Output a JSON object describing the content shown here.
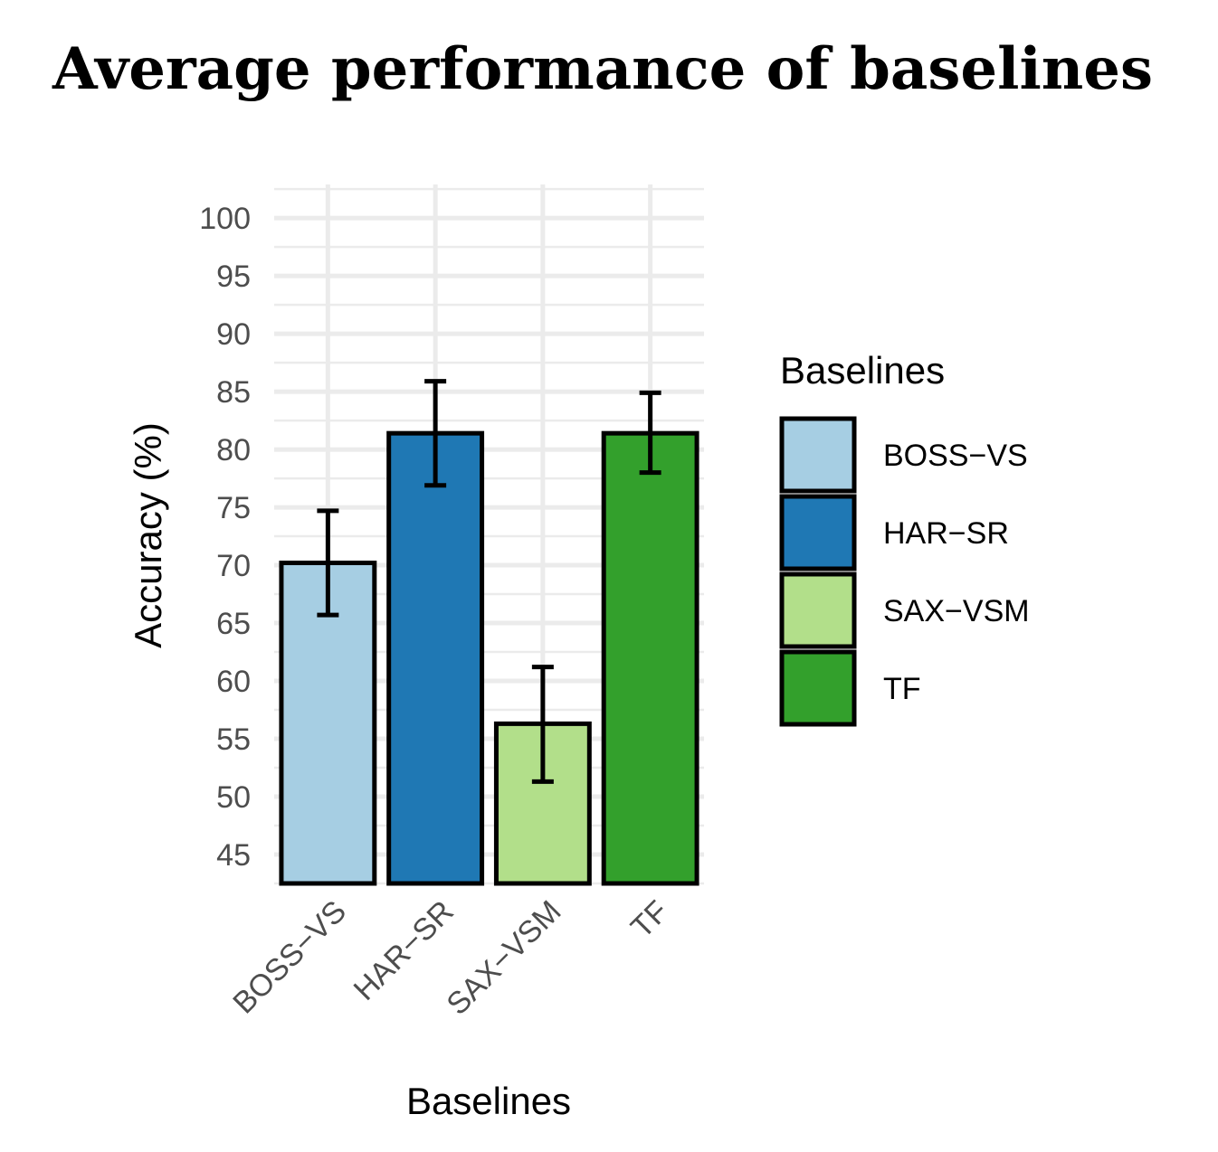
{
  "chart_data": {
    "type": "bar",
    "title": "Average performance of baselines",
    "xlabel": "Baselines",
    "ylabel": "Accuracy (%)",
    "categories": [
      "BOSS−VS",
      "HAR−SR",
      "SAX−VSM",
      "TF"
    ],
    "values": [
      70.2,
      81.4,
      56.3,
      81.4
    ],
    "error_low": [
      65.7,
      76.9,
      51.3,
      78.0
    ],
    "error_high": [
      74.7,
      85.9,
      61.2,
      84.9
    ],
    "colors": [
      "#a6cee3",
      "#1f78b4",
      "#b2df8a",
      "#33a02c"
    ],
    "ylim": [
      42.5,
      102.9
    ],
    "yticks": [
      45,
      50,
      55,
      60,
      65,
      70,
      75,
      80,
      85,
      90,
      95,
      100
    ],
    "grid": true,
    "legend": {
      "title": "Baselines",
      "entries": [
        "BOSS−VS",
        "HAR−SR",
        "SAX−VSM",
        "TF"
      ],
      "placement": "right"
    }
  }
}
